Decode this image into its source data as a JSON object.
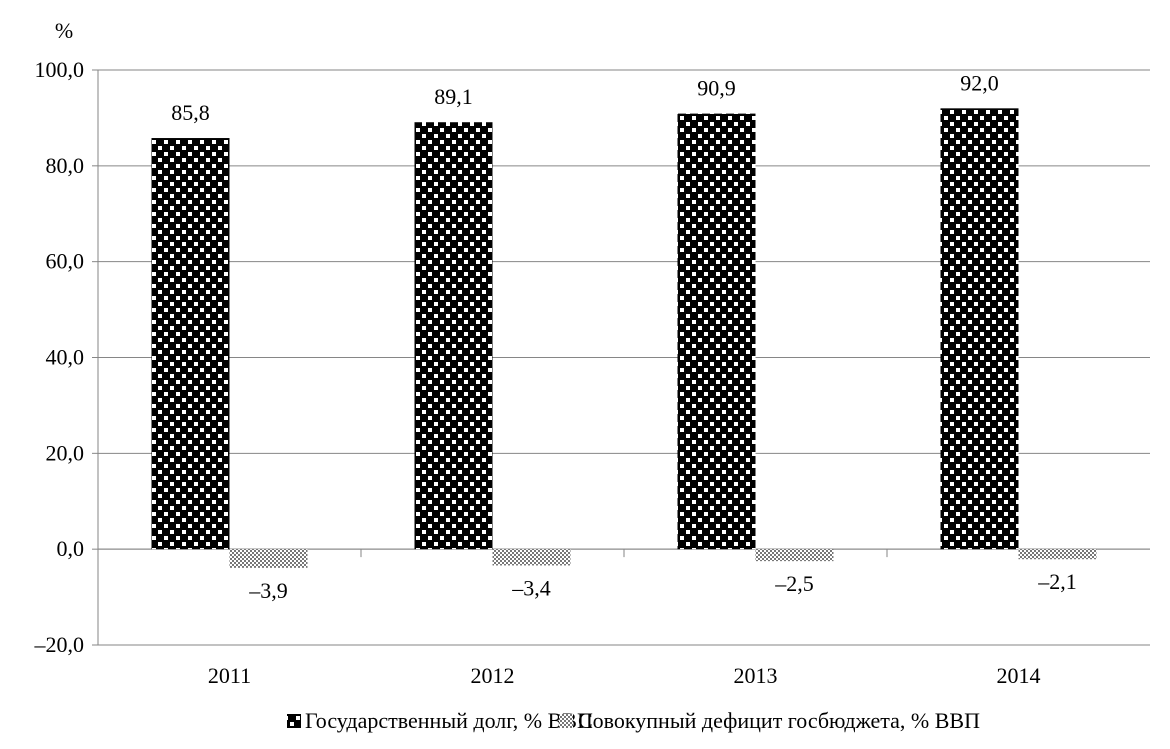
{
  "chart_data": {
    "type": "bar",
    "unit_label": "%",
    "categories": [
      "2011",
      "2012",
      "2013",
      "2014"
    ],
    "series": [
      {
        "name": "Государственный долг, % ВВП",
        "values": [
          85.8,
          89.1,
          90.9,
          92.0
        ],
        "value_labels": [
          "85,8",
          "89,1",
          "90,9",
          "92,0"
        ],
        "pattern": "dotted-black"
      },
      {
        "name": "Совокупный дефицит госбюджета, % ВВП",
        "values": [
          -3.9,
          -3.4,
          -2.5,
          -2.1
        ],
        "value_labels": [
          "–3,9",
          "–3,4",
          "–2,5",
          "–2,1"
        ],
        "pattern": "checkered-gray"
      }
    ],
    "y_ticks": [
      "–20,0",
      "0,0",
      "20,0",
      "40,0",
      "60,0",
      "80,0",
      "100,0"
    ],
    "ylim": [
      -20,
      100
    ],
    "grid": true,
    "legend_position": "bottom"
  },
  "colors": {
    "bar_dark": "#000000",
    "dot": "#ffffff",
    "grid": "#868686",
    "checker_light": "#ffffff",
    "checker_dark": "#777777"
  }
}
